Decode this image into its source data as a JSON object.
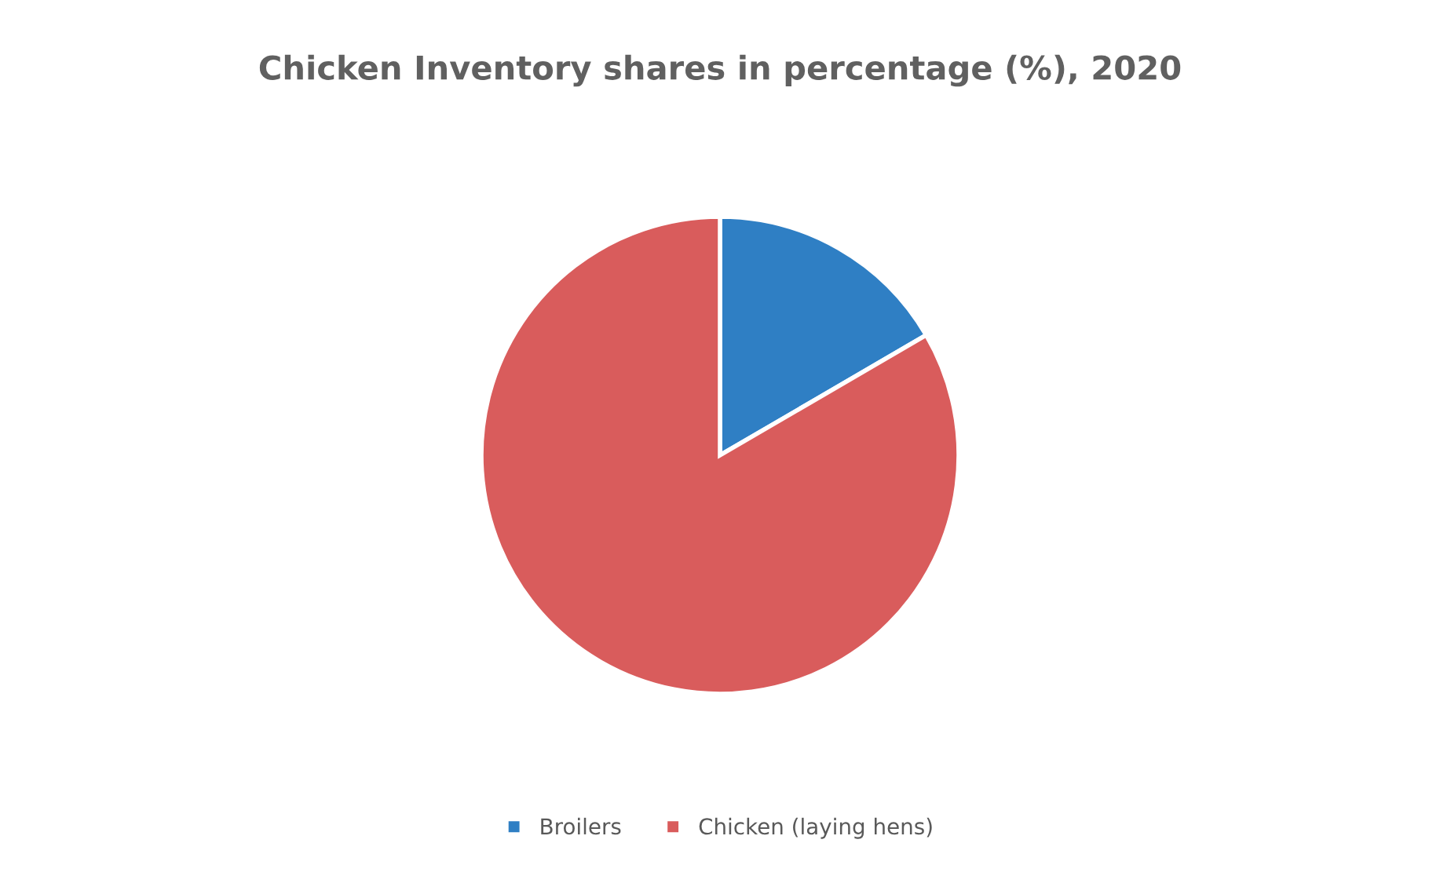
{
  "chart_data": {
    "type": "pie",
    "title": "Chicken Inventory shares in percentage (%), 2020",
    "categories": [
      "Broilers",
      "Chicken (laying hens)"
    ],
    "values": [
      16.6,
      83.4
    ],
    "colors": [
      "#2f7fc4",
      "#d95c5c"
    ],
    "legend": "bottom"
  }
}
